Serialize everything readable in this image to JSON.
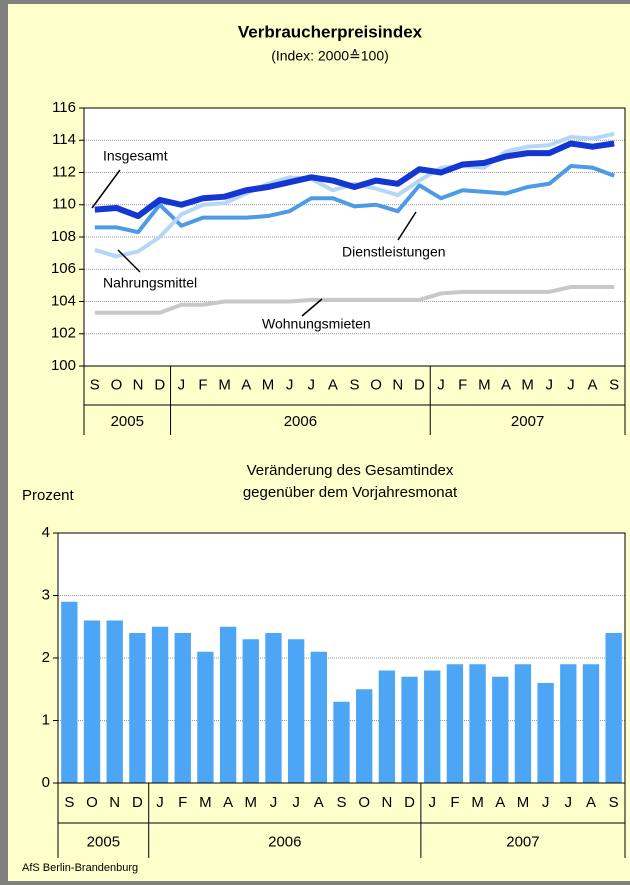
{
  "chart_data": [
    {
      "type": "line",
      "title": "Verbraucherpreisindex",
      "subtitle": "(Index: 2000≙100)",
      "categories": [
        "S",
        "O",
        "N",
        "D",
        "J",
        "F",
        "M",
        "A",
        "M",
        "J",
        "J",
        "A",
        "S",
        "O",
        "N",
        "D",
        "J",
        "F",
        "M",
        "A",
        "M",
        "J",
        "J",
        "A",
        "S"
      ],
      "years": [
        "2005",
        "2006",
        "2007"
      ],
      "ylim": [
        100,
        116
      ],
      "yticks": [
        100,
        102,
        104,
        106,
        108,
        110,
        112,
        114,
        116
      ],
      "grid": true,
      "series": [
        {
          "name": "Wohnungsmieten",
          "color": "#c8c8c8",
          "values": [
            103.3,
            103.3,
            103.3,
            103.3,
            103.8,
            103.8,
            104.0,
            104.0,
            104.0,
            104.0,
            104.1,
            104.1,
            104.1,
            104.1,
            104.1,
            104.1,
            104.5,
            104.6,
            104.6,
            104.6,
            104.6,
            104.6,
            104.9,
            104.9,
            104.9
          ]
        },
        {
          "name": "Dienstleistungen",
          "color": "#4d9be6",
          "values": [
            108.6,
            108.6,
            108.3,
            110.0,
            108.7,
            109.2,
            109.2,
            109.2,
            109.3,
            109.6,
            110.4,
            110.4,
            109.9,
            110.0,
            109.6,
            111.2,
            110.4,
            110.9,
            110.8,
            110.7,
            111.1,
            111.3,
            112.4,
            112.3,
            111.8
          ]
        },
        {
          "name": "Nahrungsmittel",
          "color": "#b5d6f7",
          "values": [
            107.2,
            106.8,
            107.1,
            108.0,
            109.4,
            110.0,
            110.1,
            110.7,
            111.3,
            111.7,
            111.6,
            110.9,
            111.3,
            111.0,
            110.6,
            111.5,
            112.3,
            112.4,
            112.3,
            113.3,
            113.6,
            113.7,
            114.2,
            114.1,
            114.4
          ]
        },
        {
          "name": "Insgesamt",
          "color": "#1436d2",
          "values": [
            109.7,
            109.8,
            109.3,
            110.3,
            110.0,
            110.4,
            110.5,
            110.9,
            111.1,
            111.4,
            111.7,
            111.5,
            111.1,
            111.5,
            111.3,
            112.2,
            112.0,
            112.5,
            112.6,
            113.0,
            113.2,
            113.2,
            113.8,
            113.6,
            113.8
          ]
        }
      ]
    },
    {
      "type": "bar",
      "title": [
        "Veränderung des Gesamtindex",
        "gegenüber dem Vorjahresmonat"
      ],
      "ylabel": "Prozent",
      "categories": [
        "S",
        "O",
        "N",
        "D",
        "J",
        "F",
        "M",
        "A",
        "M",
        "J",
        "J",
        "A",
        "S",
        "O",
        "N",
        "D",
        "J",
        "F",
        "M",
        "A",
        "M",
        "J",
        "J",
        "A",
        "S"
      ],
      "years": [
        "2005",
        "2006",
        "2007"
      ],
      "values": [
        2.9,
        2.6,
        2.6,
        2.4,
        2.5,
        2.4,
        2.1,
        2.5,
        2.3,
        2.4,
        2.3,
        2.1,
        1.3,
        1.5,
        1.8,
        1.7,
        1.8,
        1.9,
        1.9,
        1.7,
        1.9,
        1.6,
        1.9,
        1.9,
        2.4
      ],
      "color": "#4da6f5",
      "ylim": [
        0,
        4
      ],
      "yticks": [
        0,
        1,
        2,
        3,
        4
      ],
      "grid": true
    }
  ],
  "source": "AfS Berlin-Brandenburg"
}
